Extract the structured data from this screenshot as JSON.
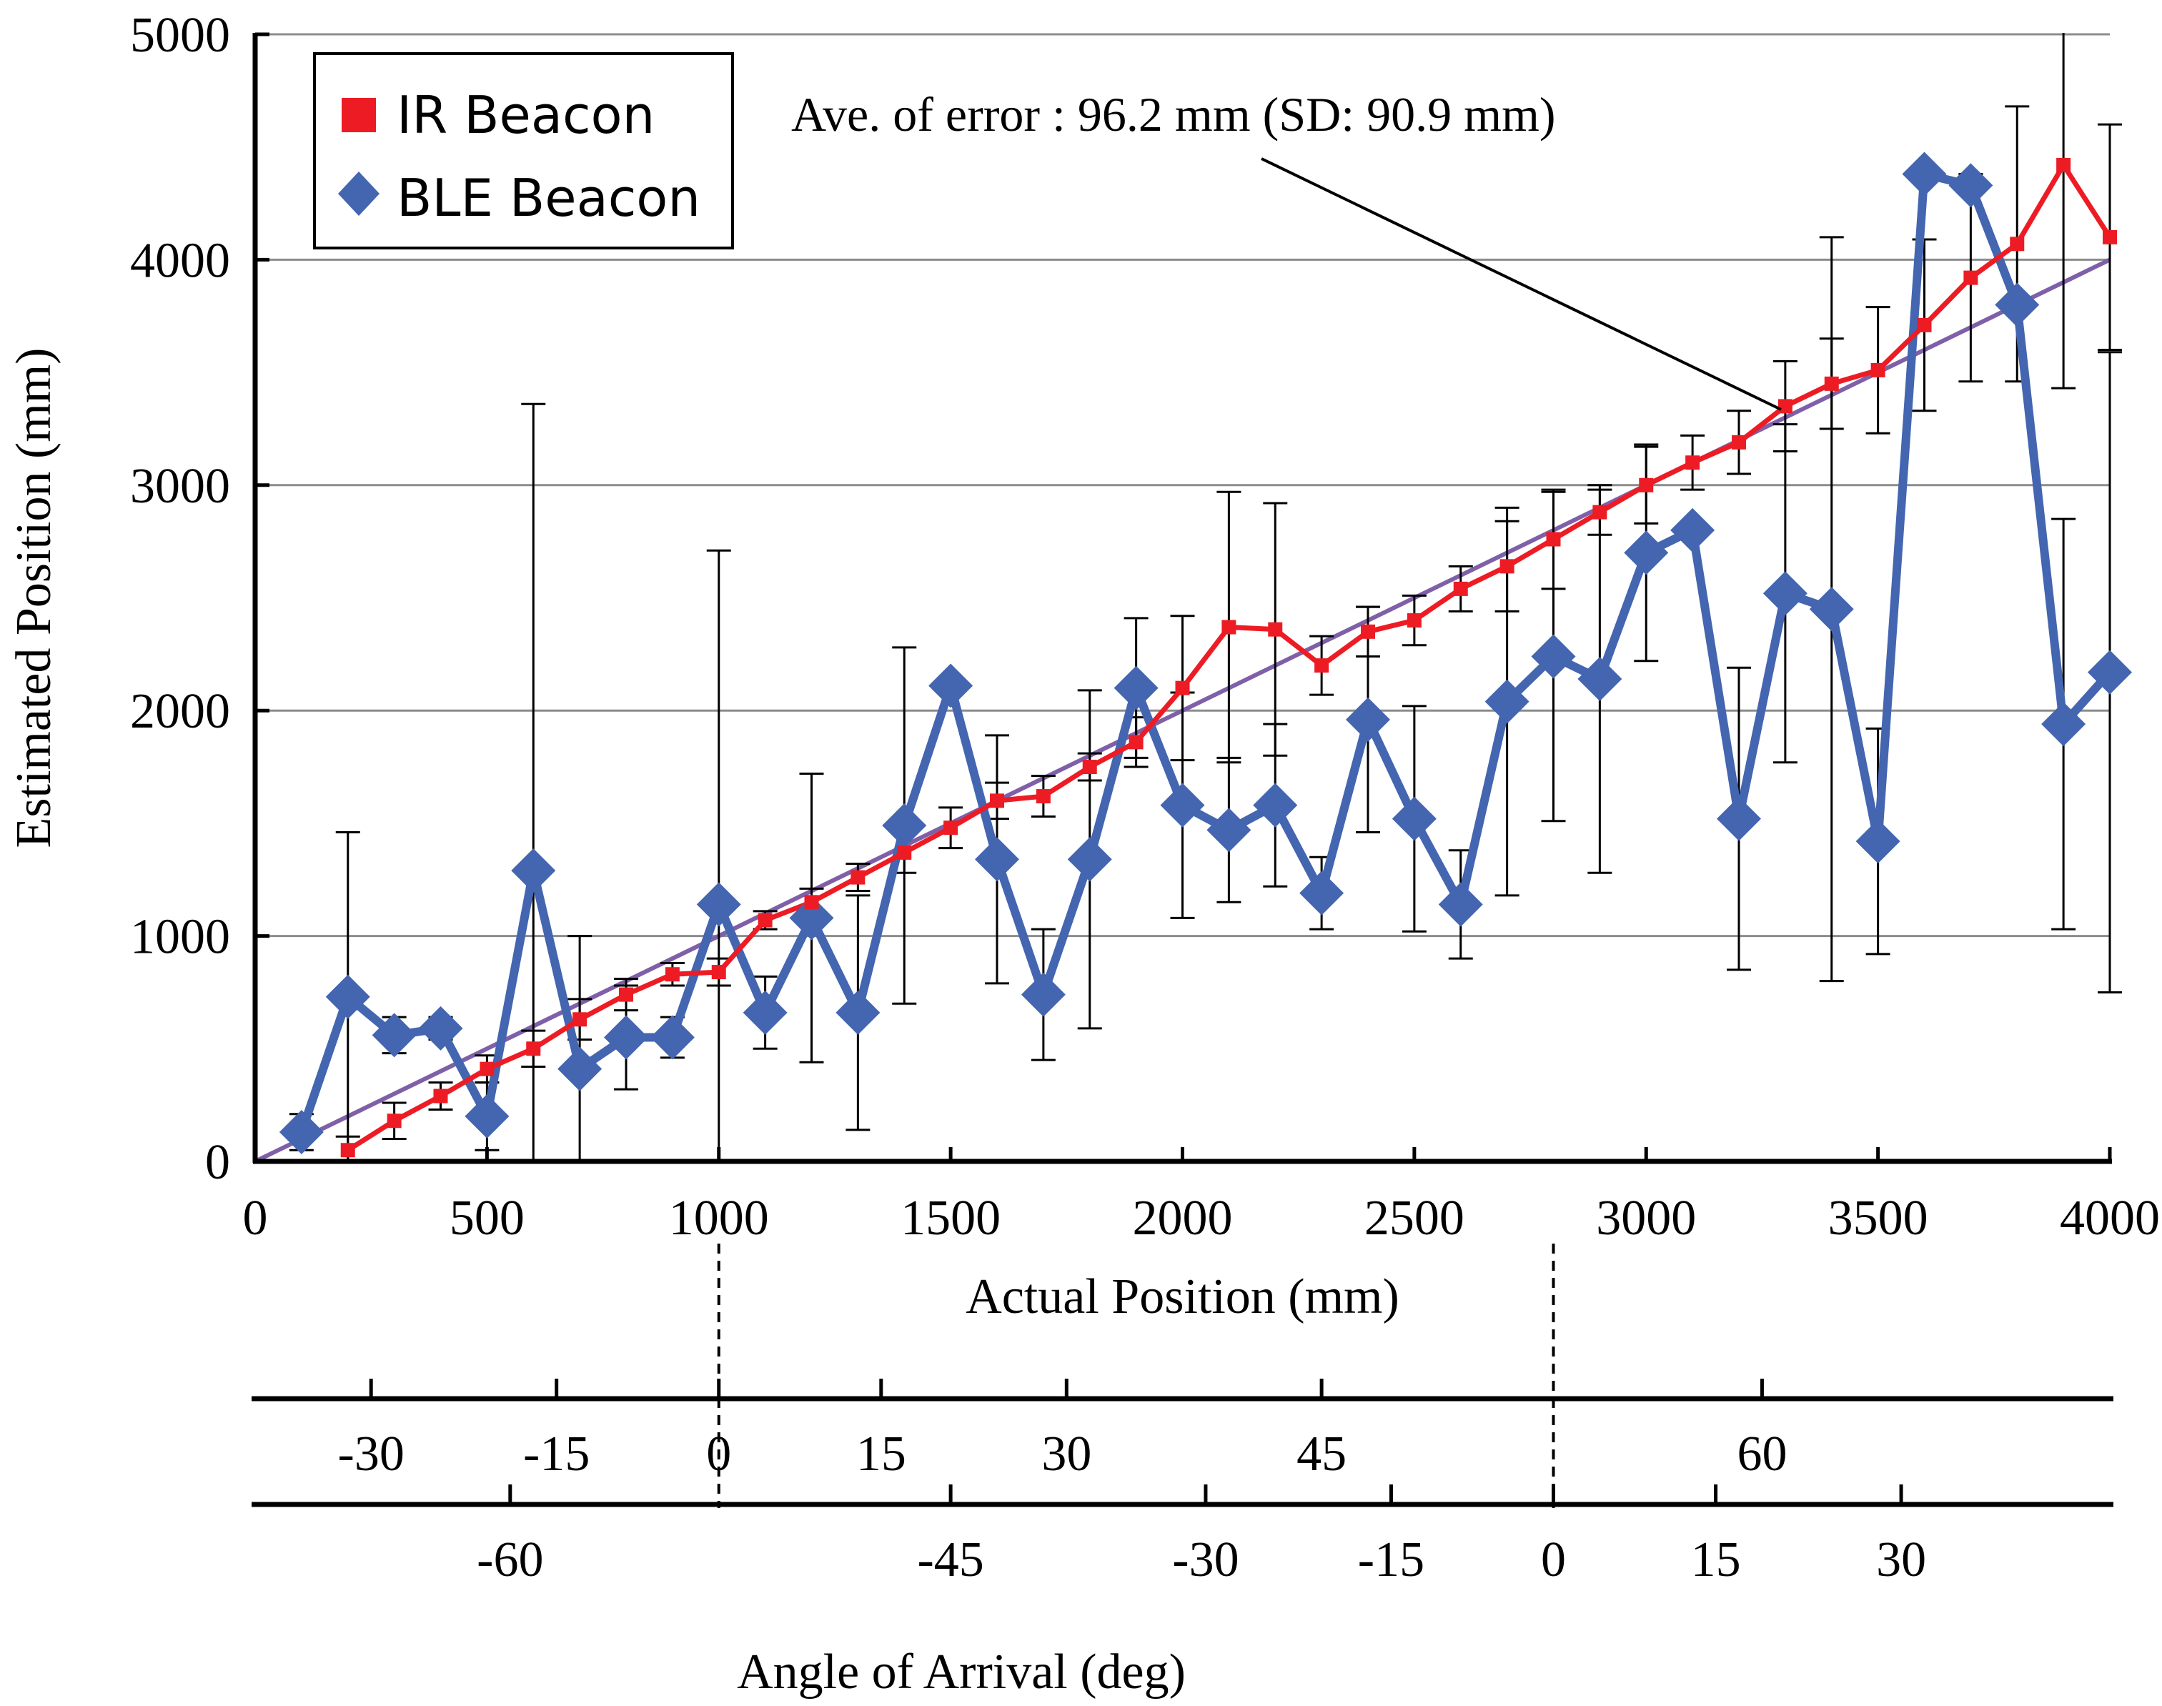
{
  "chart_data": {
    "type": "line",
    "title": "",
    "xlabel": "Actual Position (mm)",
    "ylabel": "Estimated Position (mm)",
    "xlim": [
      0,
      4000
    ],
    "ylim": [
      0,
      5000
    ],
    "x_ticks": [
      0,
      500,
      1000,
      1500,
      2000,
      2500,
      3000,
      3500,
      4000
    ],
    "y_ticks": [
      0,
      1000,
      2000,
      3000,
      4000,
      5000
    ],
    "grid": "horizontal",
    "legend_position": "top-left",
    "annotation": "Ave. of error : 96.2 mm (SD: 90.9 mm)",
    "reference_line": {
      "name": "ideal",
      "from": [
        0,
        0
      ],
      "to": [
        4000,
        4000
      ],
      "color": "#7f60a8"
    },
    "series": [
      {
        "name": "IR Beacon",
        "color": "#ed1c24",
        "marker": "square",
        "x": [
          200,
          300,
          400,
          500,
          600,
          700,
          800,
          900,
          1000,
          1100,
          1200,
          1300,
          1400,
          1500,
          1600,
          1700,
          1800,
          1900,
          2000,
          2100,
          2200,
          2300,
          2400,
          2500,
          2600,
          2700,
          2800,
          2900,
          3000,
          3100,
          3200,
          3300,
          3400,
          3500,
          3600,
          3700,
          3800,
          3900,
          4000
        ],
        "values": [
          50,
          180,
          290,
          410,
          500,
          630,
          740,
          830,
          840,
          1070,
          1150,
          1260,
          1370,
          1480,
          1600,
          1620,
          1750,
          1860,
          2100,
          2370,
          2360,
          2200,
          2350,
          2400,
          2540,
          2640,
          2760,
          2880,
          3000,
          3100,
          3190,
          3350,
          3450,
          3510,
          3710,
          3920,
          4070,
          4420,
          4100
        ],
        "err": [
          60,
          80,
          60,
          60,
          80,
          90,
          70,
          50,
          60,
          40,
          60,
          60,
          90,
          90,
          80,
          90,
          60,
          110,
          320,
          600,
          560,
          130,
          110,
          110,
          100,
          200,
          220,
          100,
          170,
          120,
          140,
          200,
          200,
          280,
          380,
          460,
          610,
          990,
          500
        ]
      },
      {
        "name": "BLE Beacon",
        "color": "#4465b0",
        "marker": "diamond",
        "x": [
          100,
          200,
          300,
          400,
          500,
          600,
          700,
          800,
          900,
          1000,
          1100,
          1200,
          1300,
          1400,
          1500,
          1600,
          1700,
          1800,
          1900,
          2000,
          2100,
          2200,
          2300,
          2400,
          2500,
          2600,
          2700,
          2800,
          2900,
          3000,
          3100,
          3200,
          3300,
          3400,
          3500,
          3600,
          3700,
          3800,
          3900,
          4000
        ],
        "values": [
          130,
          730,
          560,
          590,
          200,
          1290,
          410,
          550,
          550,
          1140,
          660,
          1080,
          660,
          1490,
          2110,
          1340,
          740,
          1340,
          2100,
          1580,
          1470,
          1580,
          1190,
          1960,
          1520,
          1140,
          2040,
          2240,
          2140,
          2700,
          2800,
          1520,
          2520,
          2450,
          1420,
          4380,
          4330,
          3800,
          1940,
          2170
        ],
        "err": [
          80,
          730,
          80,
          50,
          150,
          2070,
          590,
          230,
          90,
          1570,
          160,
          640,
          520,
          790,
          0,
          550,
          290,
          750,
          310,
          500,
          320,
          360,
          160,
          500,
          500,
          240,
          860,
          730,
          860,
          480,
          0,
          670,
          750,
          1650,
          500,
          0,
          0,
          0,
          910,
          1420
        ]
      }
    ],
    "secondary_axes": {
      "title": "Angle of Arrival (deg)",
      "axis1": {
        "ticks": [
          {
            "label": "-30",
            "x": 250
          },
          {
            "label": "-15",
            "x": 650
          },
          {
            "label": "0",
            "x": 1000
          },
          {
            "label": "15",
            "x": 1350
          },
          {
            "label": "30",
            "x": 1750
          },
          {
            "label": "45",
            "x": 2300
          },
          {
            "label": "60",
            "x": 3250
          }
        ]
      },
      "axis2": {
        "ticks": [
          {
            "label": "-60",
            "x": 550
          },
          {
            "label": "-45",
            "x": 1500
          },
          {
            "label": "-30",
            "x": 2050
          },
          {
            "label": "-15",
            "x": 2450
          },
          {
            "label": "0",
            "x": 2800
          },
          {
            "label": "15",
            "x": 3150
          },
          {
            "label": "30",
            "x": 3550
          }
        ]
      },
      "dashed_guides": [
        1000,
        2800
      ]
    }
  }
}
